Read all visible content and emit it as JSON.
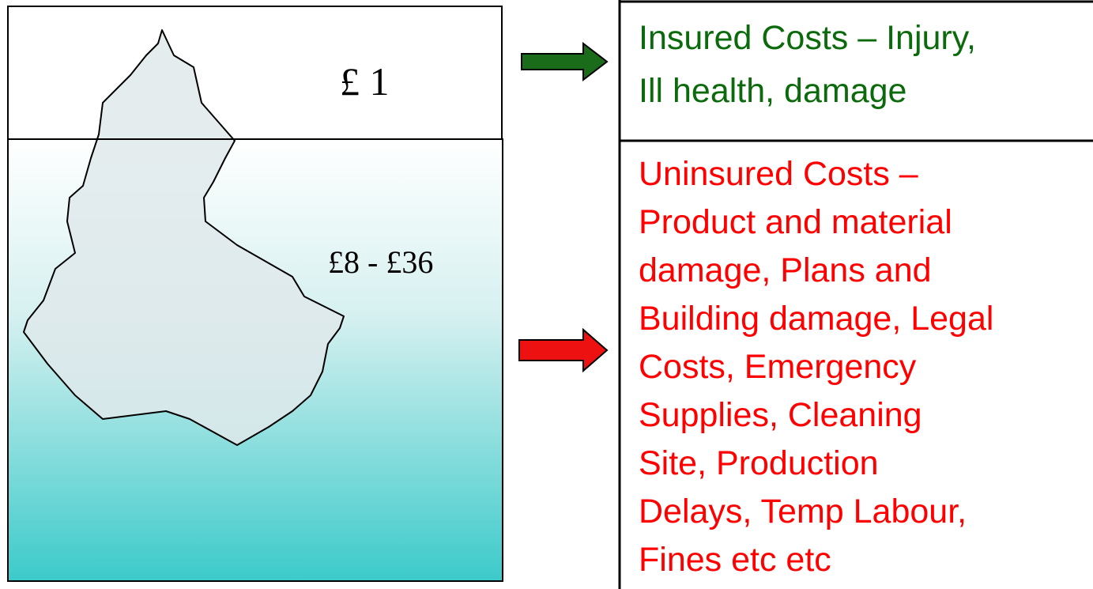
{
  "iceberg": {
    "above_label": "£ 1",
    "below_label": "£8 - £36"
  },
  "insured": {
    "lines": [
      "Insured Costs – Injury,",
      "Ill health, damage"
    ]
  },
  "uninsured": {
    "lines": [
      "Uninsured Costs –",
      "Product and material",
      "damage, Plans and",
      "Building damage, Legal",
      "Costs, Emergency",
      "Supplies, Cleaning",
      "Site, Production",
      "Delays, Temp Labour,",
      "Fines etc etc"
    ]
  }
}
